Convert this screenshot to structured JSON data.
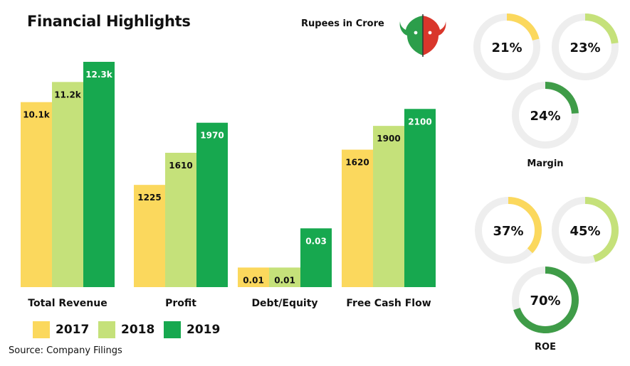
{
  "header": {
    "title": "Financial Highlights",
    "units": "Rupees in Crore",
    "logo_icon": "bull-bear-logo-icon"
  },
  "colors": {
    "y2017": "#fbd85d",
    "y2018": "#c5e17a",
    "y2019": "#17a84f",
    "ring_track": "#eeeeee"
  },
  "chart_data": [
    {
      "type": "bar",
      "categories": [
        "Total Revenue",
        "Profit",
        "Debt/Equity",
        "Free Cash Flow"
      ],
      "series": [
        {
          "name": "2017",
          "values": [
            10100,
            1225,
            0.01,
            1620
          ],
          "labels": [
            "10.1k",
            "1225",
            "0.01",
            "1620"
          ]
        },
        {
          "name": "2018",
          "values": [
            11200,
            1610,
            0.01,
            1900
          ],
          "labels": [
            "11.2k",
            "1610",
            "0.01",
            "1900"
          ]
        },
        {
          "name": "2019",
          "values": [
            12300,
            1970,
            0.03,
            2100
          ],
          "labels": [
            "12.3k",
            "1970",
            "0.03",
            "2100"
          ]
        }
      ],
      "independent_scales": true
    },
    {
      "type": "pie",
      "title": "Margin",
      "series": [
        {
          "name": "2017",
          "value": 21,
          "label": "21%"
        },
        {
          "name": "2018",
          "value": 23,
          "label": "23%"
        },
        {
          "name": "2019",
          "value": 24,
          "label": "24%"
        }
      ]
    },
    {
      "type": "pie",
      "title": "ROE",
      "series": [
        {
          "name": "2017",
          "value": 37,
          "label": "37%"
        },
        {
          "name": "2018",
          "value": 45,
          "label": "45%"
        },
        {
          "name": "2019",
          "value": 70,
          "label": "70%"
        }
      ]
    }
  ],
  "legend": [
    "2017",
    "2018",
    "2019"
  ],
  "source": "Source: Company Filings"
}
